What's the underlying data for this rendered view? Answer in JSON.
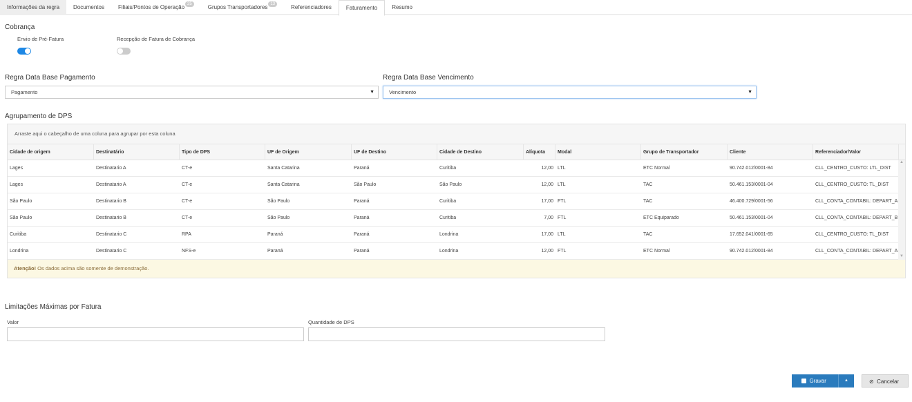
{
  "tabs": [
    {
      "label": "Informações da regra"
    },
    {
      "label": "Documentos"
    },
    {
      "label": "Filiais/Pontos de Operação",
      "badge": "25"
    },
    {
      "label": "Grupos Transportadores",
      "badge": "13"
    },
    {
      "label": "Referenciadores"
    },
    {
      "label": "Faturamento",
      "active": true
    },
    {
      "label": "Resumo"
    }
  ],
  "cobranca": {
    "title": "Cobrança",
    "envio_label": "Envio de Pré-Fatura",
    "envio_on": true,
    "recepcao_label": "Recepção de Fatura de Cobrança",
    "recepcao_on": false
  },
  "regra_pagamento": {
    "title": "Regra Data Base Pagamento",
    "value": "Pagamento"
  },
  "regra_vencimento": {
    "title": "Regra Data Base Vencimento",
    "value": "Vencimento"
  },
  "accent": "#1e88e5",
  "agrupamento": {
    "title": "Agrupamento de DPS",
    "group_hint": "Arraste aqui o cabeçalho de uma coluna para agrupar por esta coluna",
    "columns": [
      "Cidade de origem",
      "Destinatário",
      "Tipo de DPS",
      "UF de Origem",
      "UF de Destino",
      "Cidade de Destino",
      "Alíquota",
      "Modal",
      "Grupo de Transportador",
      "Cliente",
      "Referenciador/Valor"
    ],
    "rows": [
      [
        "Lages",
        "Destinatario A",
        "CT-e",
        "Santa Catarina",
        "Paraná",
        "Curitiba",
        "12,00",
        "LTL",
        "ETC Normal",
        "90.742.012/0001-84",
        "CLL_CENTRO_CUSTO: LTL_DIST"
      ],
      [
        "Lages",
        "Destinatario A",
        "CT-e",
        "Santa Catarina",
        "São Paulo",
        "São Paulo",
        "12,00",
        "LTL",
        "TAC",
        "50.461.153/0001-04",
        "CLL_CENTRO_CUSTO: TL_DIST"
      ],
      [
        "São Paulo",
        "Destinatario B",
        "CT-e",
        "São Paulo",
        "Paraná",
        "Curitiba",
        "17,00",
        "FTL",
        "TAC",
        "46.400.729/0001-56",
        "CLL_CONTA_CONTABIL: DEPART_A"
      ],
      [
        "São Paulo",
        "Destinatario B",
        "CT-e",
        "São Paulo",
        "Paraná",
        "Curitiba",
        "7,00",
        "FTL",
        "ETC Equiparado",
        "50.461.153/0001-04",
        "CLL_CONTA_CONTABIL: DEPART_B"
      ],
      [
        "Curitiba",
        "Destinatario C",
        "RPA",
        "Paraná",
        "Paraná",
        "Londrina",
        "17,00",
        "LTL",
        "TAC",
        "17.652.041/0001-65",
        "CLL_CENTRO_CUSTO: TL_DIST"
      ],
      [
        "Londrina",
        "Destinatario C",
        "NFS-e",
        "Paraná",
        "Paraná",
        "Londrina",
        "12,00",
        "FTL",
        "ETC Normal",
        "90.742.012/0001-84",
        "CLL_CONTA_CONTABIL: DEPART_A"
      ]
    ],
    "alert_strong": "Atenção!",
    "alert_text": " Os dados acima são somente de demonstração."
  },
  "limitacoes": {
    "title": "Limitações Máximas por Fatura",
    "valor_label": "Valor",
    "valor_value": "",
    "qtd_label": "Quantidade de DPS",
    "qtd_value": ""
  },
  "actions": {
    "save": "Gravar",
    "cancel": "Cancelar"
  }
}
